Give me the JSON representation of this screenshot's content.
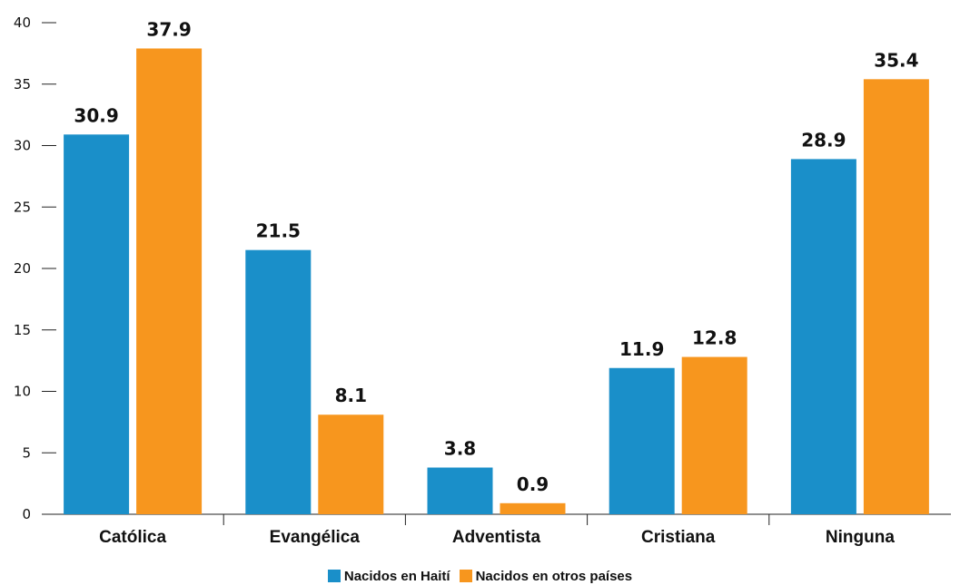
{
  "chart_data": {
    "type": "bar",
    "categories": [
      "Católica",
      "Evangélica",
      "Adventista",
      "Cristiana",
      "Ninguna"
    ],
    "series": [
      {
        "name": "Nacidos en Haití",
        "color": "#1a8fc9",
        "values": [
          30.9,
          21.5,
          3.8,
          11.9,
          28.9
        ]
      },
      {
        "name": "Nacidos en otros países",
        "color": "#f7961e",
        "values": [
          37.9,
          8.1,
          0.9,
          12.8,
          35.4
        ]
      }
    ],
    "yticks": [
      "0",
      "5",
      "10",
      "15",
      "20",
      "25",
      "30",
      "35",
      "40"
    ],
    "value_labels": [
      [
        "30.9",
        "21.5",
        "3.8",
        "11.9",
        "28.9"
      ],
      [
        "37.9",
        "8.1",
        "0.9",
        "12.8",
        "35.4"
      ]
    ],
    "ylim": [
      0,
      40
    ],
    "grid": false,
    "legend_position": "bottom-center",
    "title": "",
    "xlabel": "",
    "ylabel": ""
  },
  "legend": {
    "items": [
      {
        "label": "Nacidos en Haití",
        "color": "#1a8fc9"
      },
      {
        "label": "Nacidos en otros países",
        "color": "#f7961e"
      }
    ]
  }
}
